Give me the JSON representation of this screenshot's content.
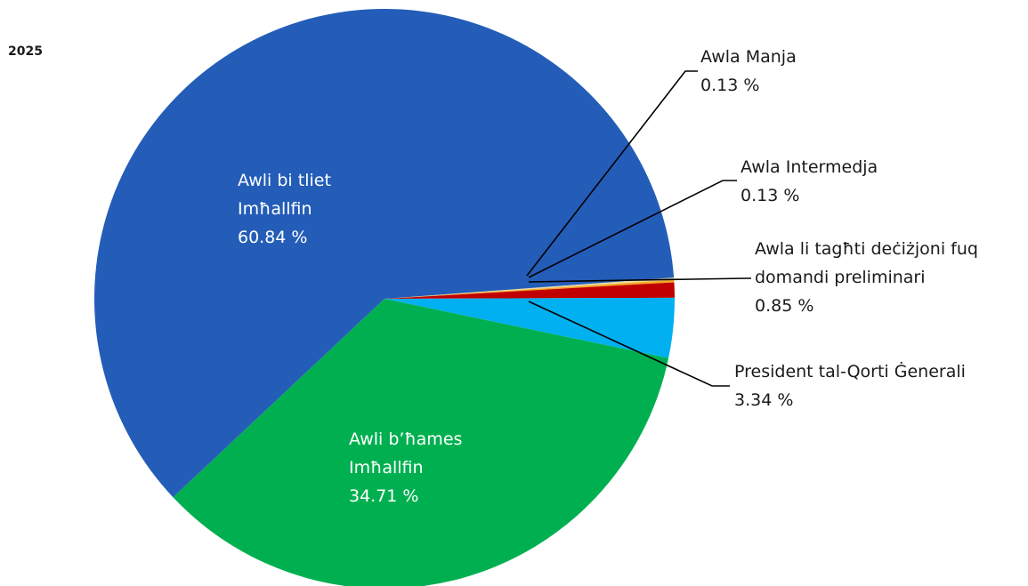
{
  "chart_data": {
    "type": "pie",
    "title": "2025",
    "slices": [
      {
        "label_lines": [
          "Awla Manja"
        ],
        "value": 0.13,
        "value_text": "0.13 %",
        "color": "#E8D9A0"
      },
      {
        "label_lines": [
          "Awla Intermedja"
        ],
        "value": 0.13,
        "value_text": "0.13 %",
        "color": "#F5A623"
      },
      {
        "label_lines": [
          "Awla li tagħti deċiżjoni fuq",
          "domandi preliminari"
        ],
        "value": 0.85,
        "value_text": "0.85 %",
        "color": "#C00000"
      },
      {
        "label_lines": [
          "President tal-Qorti Ġenerali"
        ],
        "value": 3.34,
        "value_text": "3.34 %",
        "color": "#00B0F0"
      },
      {
        "label_lines": [
          "Awli b’ħames",
          "Imħallfin"
        ],
        "value": 34.71,
        "value_text": "34.71 %",
        "color": "#00B050"
      },
      {
        "label_lines": [
          "Awli bi tliet",
          "Imħallfin"
        ],
        "value": 60.84,
        "value_text": "60.84 %",
        "color": "#245DB8"
      }
    ]
  }
}
